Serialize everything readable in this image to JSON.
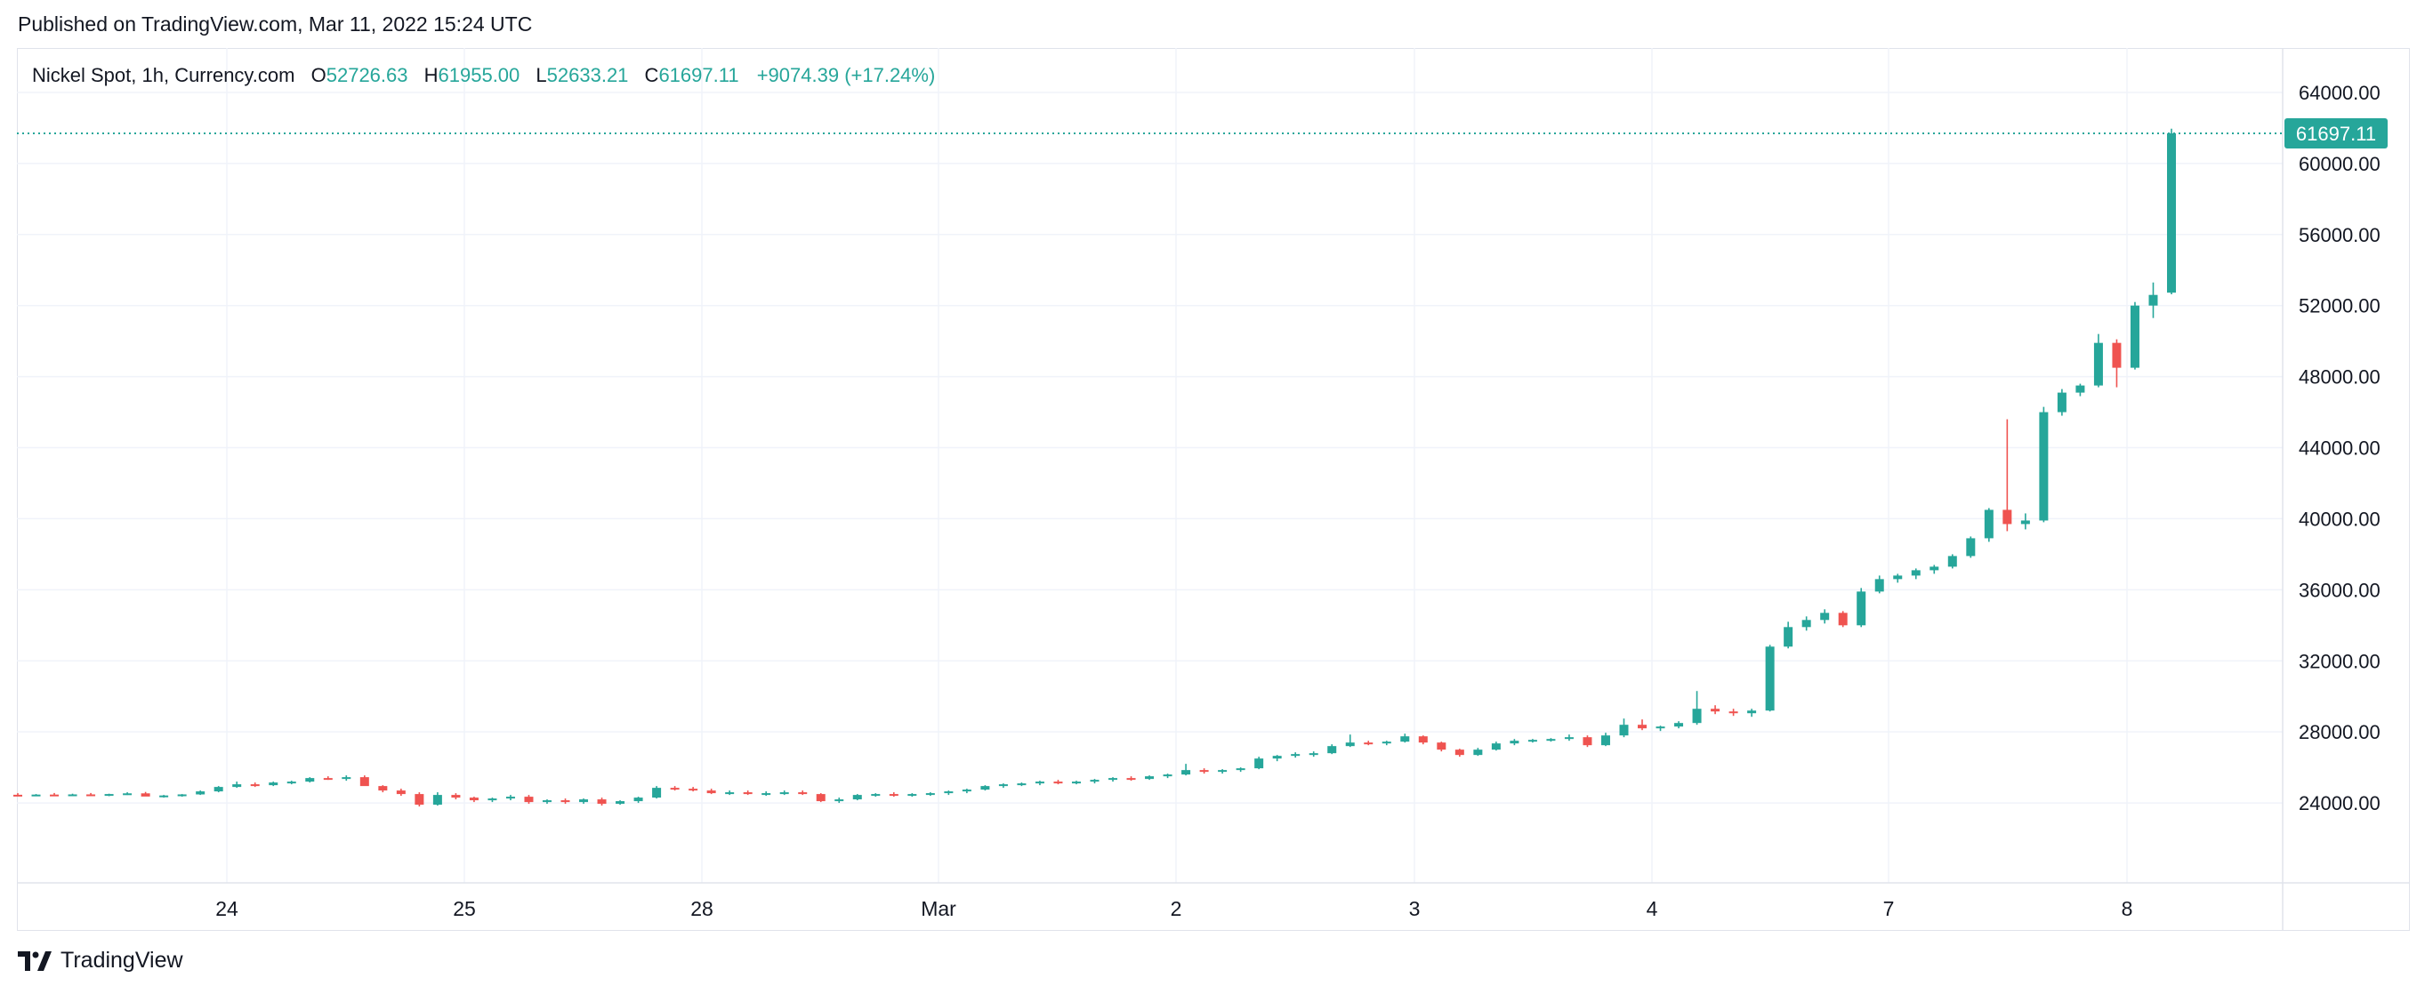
{
  "header": {
    "published": "Published on TradingView.com, Mar 11, 2022 15:24 UTC"
  },
  "legend": {
    "symbol": "Nickel Spot, 1h, Currency.com",
    "open_label": "O",
    "open": "52726.63",
    "high_label": "H",
    "high": "61955.00",
    "low_label": "L",
    "low": "52633.21",
    "close_label": "C",
    "close": "61697.11",
    "change": "+9074.39 (+17.24%)"
  },
  "footer": {
    "brand": "TradingView",
    "logo_icon": "tradingview-logo-icon"
  },
  "colors": {
    "up": "#26a69a",
    "down": "#ef5350",
    "grid": "#f0f3fa",
    "axis_text": "#131722"
  },
  "chart_data": {
    "type": "candlestick",
    "title": "Nickel Spot, 1h, Currency.com",
    "x_tick_labels": [
      "24",
      "25",
      "28",
      "Mar",
      "2",
      "3",
      "4",
      "7",
      "8"
    ],
    "y_ticks": [
      24000,
      28000,
      32000,
      36000,
      40000,
      44000,
      48000,
      52000,
      56000,
      60000,
      64000
    ],
    "y_tick_labels": [
      "24000.00",
      "28000.00",
      "32000.00",
      "36000.00",
      "40000.00",
      "44000.00",
      "48000.00",
      "52000.00",
      "56000.00",
      "60000.00",
      "64000.00"
    ],
    "ylim": [
      19500,
      66500
    ],
    "last_price": 61697.11,
    "last_price_label": "61697.11",
    "grid": true,
    "candle_fields": [
      "open",
      "high",
      "low",
      "close"
    ],
    "candles": [
      [
        24460,
        24550,
        24380,
        24420
      ],
      [
        24420,
        24500,
        24380,
        24470
      ],
      [
        24470,
        24560,
        24400,
        24430
      ],
      [
        24430,
        24520,
        24380,
        24480
      ],
      [
        24480,
        24560,
        24420,
        24450
      ],
      [
        24450,
        24520,
        24380,
        24500
      ],
      [
        24500,
        24600,
        24450,
        24540
      ],
      [
        24540,
        24620,
        24400,
        24360
      ],
      [
        24360,
        24450,
        24300,
        24420
      ],
      [
        24420,
        24500,
        24350,
        24480
      ],
      [
        24480,
        24700,
        24450,
        24650
      ],
      [
        24650,
        24950,
        24600,
        24900
      ],
      [
        24900,
        25200,
        24850,
        25050
      ],
      [
        25050,
        25150,
        24900,
        25000
      ],
      [
        25000,
        25200,
        24950,
        25150
      ],
      [
        25150,
        25250,
        25050,
        25200
      ],
      [
        25200,
        25450,
        25150,
        25400
      ],
      [
        25400,
        25500,
        25300,
        25350
      ],
      [
        25350,
        25550,
        25250,
        25450
      ],
      [
        25450,
        25550,
        25050,
        24950
      ],
      [
        24950,
        25000,
        24600,
        24700
      ],
      [
        24700,
        24800,
        24400,
        24500
      ],
      [
        24500,
        24600,
        23800,
        23900
      ],
      [
        23900,
        24600,
        23850,
        24450
      ],
      [
        24450,
        24550,
        24200,
        24300
      ],
      [
        24300,
        24350,
        24050,
        24150
      ],
      [
        24150,
        24300,
        24050,
        24250
      ],
      [
        24250,
        24450,
        24150,
        24350
      ],
      [
        24350,
        24450,
        23950,
        24050
      ],
      [
        24050,
        24200,
        23950,
        24150
      ],
      [
        24150,
        24250,
        23950,
        24050
      ],
      [
        24050,
        24250,
        23950,
        24200
      ],
      [
        24200,
        24300,
        23850,
        23950
      ],
      [
        23950,
        24150,
        23900,
        24100
      ],
      [
        24100,
        24350,
        24000,
        24300
      ],
      [
        24300,
        24950,
        24250,
        24850
      ],
      [
        24850,
        24950,
        24700,
        24800
      ],
      [
        24800,
        24900,
        24650,
        24700
      ],
      [
        24700,
        24800,
        24500,
        24550
      ],
      [
        24550,
        24700,
        24450,
        24600
      ],
      [
        24600,
        24700,
        24450,
        24500
      ],
      [
        24500,
        24650,
        24400,
        24550
      ],
      [
        24550,
        24700,
        24450,
        24600
      ],
      [
        24600,
        24700,
        24450,
        24500
      ],
      [
        24500,
        24550,
        24050,
        24100
      ],
      [
        24100,
        24300,
        24000,
        24200
      ],
      [
        24200,
        24500,
        24150,
        24450
      ],
      [
        24450,
        24550,
        24350,
        24500
      ],
      [
        24500,
        24600,
        24350,
        24450
      ],
      [
        24450,
        24550,
        24350,
        24500
      ],
      [
        24500,
        24600,
        24400,
        24550
      ],
      [
        24550,
        24700,
        24450,
        24650
      ],
      [
        24650,
        24800,
        24550,
        24750
      ],
      [
        24750,
        25000,
        24700,
        24950
      ],
      [
        24950,
        25100,
        24850,
        25050
      ],
      [
        25050,
        25150,
        24950,
        25100
      ],
      [
        25100,
        25250,
        25000,
        25200
      ],
      [
        25200,
        25300,
        25050,
        25150
      ],
      [
        25150,
        25250,
        25050,
        25200
      ],
      [
        25200,
        25350,
        25100,
        25300
      ],
      [
        25300,
        25450,
        25200,
        25400
      ],
      [
        25400,
        25500,
        25250,
        25350
      ],
      [
        25350,
        25550,
        25300,
        25500
      ],
      [
        25500,
        25650,
        25400,
        25600
      ],
      [
        25600,
        26200,
        25550,
        25850
      ],
      [
        25850,
        25950,
        25650,
        25750
      ],
      [
        25750,
        25900,
        25650,
        25850
      ],
      [
        25850,
        26000,
        25750,
        25950
      ],
      [
        25950,
        26600,
        25900,
        26500
      ],
      [
        26500,
        26700,
        26350,
        26650
      ],
      [
        26650,
        26850,
        26550,
        26750
      ],
      [
        26750,
        26900,
        26600,
        26800
      ],
      [
        26800,
        27300,
        26750,
        27200
      ],
      [
        27200,
        27850,
        27150,
        27400
      ],
      [
        27400,
        27500,
        27250,
        27350
      ],
      [
        27350,
        27500,
        27250,
        27450
      ],
      [
        27450,
        27900,
        27400,
        27750
      ],
      [
        27750,
        27800,
        27300,
        27400
      ],
      [
        27400,
        27450,
        26900,
        27000
      ],
      [
        27000,
        27050,
        26600,
        26700
      ],
      [
        26700,
        27100,
        26650,
        27000
      ],
      [
        27000,
        27450,
        26950,
        27350
      ],
      [
        27350,
        27600,
        27250,
        27500
      ],
      [
        27500,
        27600,
        27400,
        27550
      ],
      [
        27550,
        27650,
        27450,
        27600
      ],
      [
        27600,
        27850,
        27500,
        27700
      ],
      [
        27700,
        27800,
        27150,
        27250
      ],
      [
        27250,
        27950,
        27200,
        27800
      ],
      [
        27800,
        28750,
        27700,
        28400
      ],
      [
        28400,
        28700,
        28100,
        28200
      ],
      [
        28200,
        28350,
        28050,
        28300
      ],
      [
        28300,
        28600,
        28200,
        28500
      ],
      [
        28500,
        30300,
        28400,
        29300
      ],
      [
        29300,
        29500,
        29000,
        29150
      ],
      [
        29150,
        29300,
        28900,
        29050
      ],
      [
        29050,
        29300,
        28850,
        29200
      ],
      [
        29200,
        32900,
        29150,
        32800
      ],
      [
        32800,
        34200,
        32700,
        33900
      ],
      [
        33900,
        34500,
        33700,
        34300
      ],
      [
        34300,
        34900,
        34100,
        34700
      ],
      [
        34700,
        34800,
        33900,
        34000
      ],
      [
        34000,
        36100,
        33900,
        35900
      ],
      [
        35900,
        36800,
        35800,
        36600
      ],
      [
        36600,
        36900,
        36400,
        36800
      ],
      [
        36800,
        37200,
        36600,
        37100
      ],
      [
        37100,
        37400,
        36900,
        37300
      ],
      [
        37300,
        38000,
        37200,
        37900
      ],
      [
        37900,
        39000,
        37800,
        38900
      ],
      [
        38900,
        40600,
        38700,
        40500
      ],
      [
        40500,
        45600,
        39300,
        39700
      ],
      [
        39700,
        40300,
        39400,
        39900
      ],
      [
        39900,
        46300,
        39800,
        46000
      ],
      [
        46000,
        47300,
        45800,
        47100
      ],
      [
        47100,
        47600,
        46900,
        47500
      ],
      [
        47500,
        50400,
        47400,
        49900
      ],
      [
        49900,
        50100,
        47400,
        48500
      ],
      [
        48500,
        52200,
        48400,
        52000
      ],
      [
        52000,
        53300,
        51300,
        52600
      ],
      [
        52726.63,
        61955,
        52633.21,
        61697.11
      ]
    ]
  }
}
